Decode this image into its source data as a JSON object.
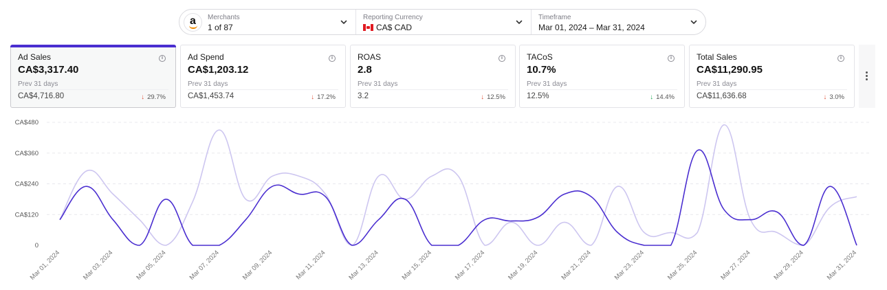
{
  "filters": {
    "merchants": {
      "label": "Merchants",
      "value": "1 of 87",
      "logo_letter": "a"
    },
    "currency": {
      "label": "Reporting Currency",
      "value": "CA$ CAD"
    },
    "timeframe": {
      "label": "Timeframe",
      "value": "Mar 01, 2024 – Mar 31, 2024"
    }
  },
  "cards": [
    {
      "title": "Ad Sales",
      "value": "CA$3,317.40",
      "prev_label": "Prev 31 days",
      "prev_value": "CA$4,716.80",
      "change": "29.7%",
      "trend": "down-red",
      "active": true
    },
    {
      "title": "Ad Spend",
      "value": "CA$1,203.12",
      "prev_label": "Prev 31 days",
      "prev_value": "CA$1,453.74",
      "change": "17.2%",
      "trend": "down-red",
      "active": false
    },
    {
      "title": "ROAS",
      "value": "2.8",
      "prev_label": "Prev 31 days",
      "prev_value": "3.2",
      "change": "12.5%",
      "trend": "down-red",
      "active": false
    },
    {
      "title": "TACoS",
      "value": "10.7%",
      "prev_label": "Prev 31 days",
      "prev_value": "12.5%",
      "change": "14.4%",
      "trend": "down-green",
      "active": false
    },
    {
      "title": "Total Sales",
      "value": "CA$11,290.95",
      "prev_label": "Prev 31 days",
      "prev_value": "CA$11,636.68",
      "change": "3.0%",
      "trend": "down-red",
      "active": false
    }
  ],
  "icons": {
    "info": "info-icon",
    "chevron": "chevron-down-icon",
    "more": "more-vertical-icon",
    "trend_down": "arrow-down-icon"
  },
  "colors": {
    "accent": "#4a2ed0",
    "previous_series": "#cdc6f0",
    "down_red": "#e0533a",
    "down_green": "#1faa55"
  },
  "chart_data": {
    "type": "line",
    "ylim": [
      0,
      480
    ],
    "yticks": [
      "0",
      "CA$120",
      "CA$240",
      "CA$360",
      "CA$480"
    ],
    "ytick_values": [
      0,
      120,
      240,
      360,
      480
    ],
    "x": [
      "Mar 01, 2024",
      "Mar 02, 2024",
      "Mar 03, 2024",
      "Mar 04, 2024",
      "Mar 05, 2024",
      "Mar 06, 2024",
      "Mar 07, 2024",
      "Mar 08, 2024",
      "Mar 09, 2024",
      "Mar 10, 2024",
      "Mar 11, 2024",
      "Mar 12, 2024",
      "Mar 13, 2024",
      "Mar 14, 2024",
      "Mar 15, 2024",
      "Mar 16, 2024",
      "Mar 17, 2024",
      "Mar 18, 2024",
      "Mar 19, 2024",
      "Mar 20, 2024",
      "Mar 21, 2024",
      "Mar 22, 2024",
      "Mar 23, 2024",
      "Mar 24, 2024",
      "Mar 25, 2024",
      "Mar 26, 2024",
      "Mar 27, 2024",
      "Mar 28, 2024",
      "Mar 29, 2024",
      "Mar 30, 2024",
      "Mar 31, 2024"
    ],
    "xtick_labels": [
      "Mar 01, 2024",
      "Mar 03, 2024",
      "Mar 05, 2024",
      "Mar 07, 2024",
      "Mar 09, 2024",
      "Mar 11, 2024",
      "Mar 13, 2024",
      "Mar 15, 2024",
      "Mar 17, 2024",
      "Mar 19, 2024",
      "Mar 21, 2024",
      "Mar 23, 2024",
      "Mar 25, 2024",
      "Mar 27, 2024",
      "Mar 29, 2024",
      "Mar 31, 2024"
    ],
    "grid": true,
    "series": [
      {
        "values": [
          100,
          230,
          100,
          0,
          180,
          0,
          0,
          100,
          230,
          200,
          190,
          0,
          100,
          180,
          0,
          0,
          100,
          95,
          110,
          200,
          190,
          50,
          0,
          0,
          370,
          140,
          100,
          130,
          0,
          230,
          0
        ]
      },
      {
        "values": [
          100,
          290,
          200,
          100,
          0,
          170,
          450,
          180,
          270,
          270,
          200,
          0,
          270,
          180,
          270,
          270,
          0,
          90,
          0,
          90,
          0,
          230,
          50,
          50,
          50,
          470,
          100,
          50,
          0,
          150,
          190
        ]
      }
    ]
  }
}
